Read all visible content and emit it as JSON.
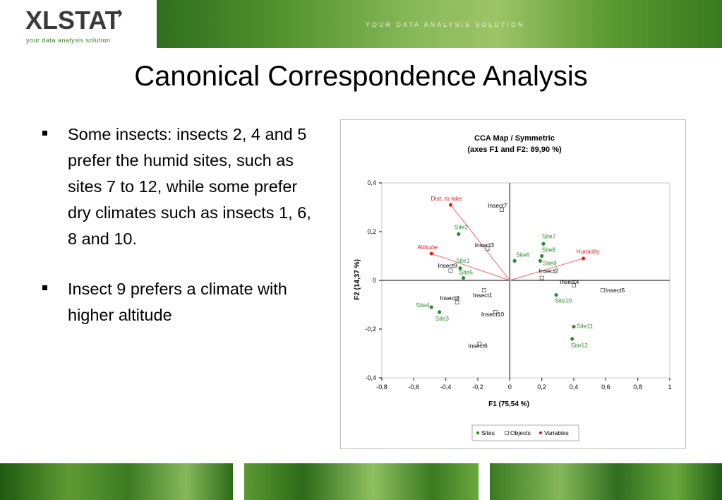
{
  "header": {
    "logo_text": "XLSTAT",
    "logo_tagline": "your data analysis solution",
    "banner_slogan": "YOUR DATA ANALYSIS SOLUTION"
  },
  "slide": {
    "title": "Canonical Correspondence Analysis",
    "bullets": [
      "Some insects: insects 2, 4 and 5 prefer the humid sites, such as sites 7 to 12, while some prefer dry climates such as insects 1, 6, 8 and 10.",
      "Insect 9 prefers a climate with higher altitude"
    ]
  },
  "chart_data": {
    "type": "scatter",
    "title": "CCA Map / Symmetric",
    "subtitle": "(axes F1 and F2: 89,90 %)",
    "xlabel": "F1 (75,54 %)",
    "ylabel": "F2 (14,37 %)",
    "xlim": [
      -0.8,
      1
    ],
    "ylim": [
      -0.4,
      0.4
    ],
    "xticks": [
      "-0,8",
      "-0,6",
      "-0,4",
      "-0,2",
      "0",
      "0,2",
      "0,4",
      "0,6",
      "0,8",
      "1"
    ],
    "yticks": [
      "-0,4",
      "-0,2",
      "0",
      "0,2",
      "0,4"
    ],
    "legend_position": "bottom",
    "legend": [
      "Sites",
      "Objects",
      "Variables"
    ],
    "colors": {
      "sites": "#2e8b2e",
      "objects": "#555555",
      "variables": "#e02020",
      "arrows": "#f08080"
    },
    "series": [
      {
        "name": "Sites",
        "points": [
          {
            "label": "Site1",
            "x": -0.31,
            "y": 0.05
          },
          {
            "label": "Site2",
            "x": -0.32,
            "y": 0.19
          },
          {
            "label": "Site3",
            "x": -0.44,
            "y": -0.13
          },
          {
            "label": "Site4",
            "x": -0.49,
            "y": -0.11
          },
          {
            "label": "Site5",
            "x": -0.29,
            "y": 0.01
          },
          {
            "label": "Site6",
            "x": 0.03,
            "y": 0.08
          },
          {
            "label": "Site7",
            "x": 0.21,
            "y": 0.15
          },
          {
            "label": "Site8",
            "x": 0.2,
            "y": 0.1
          },
          {
            "label": "Site9",
            "x": 0.19,
            "y": 0.08
          },
          {
            "label": "Site10",
            "x": 0.29,
            "y": -0.06
          },
          {
            "label": "Site11",
            "x": 0.4,
            "y": -0.19
          },
          {
            "label": "Site12",
            "x": 0.39,
            "y": -0.24
          }
        ]
      },
      {
        "name": "Objects",
        "points": [
          {
            "label": "Insect1",
            "x": -0.16,
            "y": -0.04
          },
          {
            "label": "Insect2",
            "x": 0.2,
            "y": 0.01
          },
          {
            "label": "Insect3",
            "x": -0.14,
            "y": 0.13
          },
          {
            "label": "Insect4",
            "x": 0.4,
            "y": -0.02
          },
          {
            "label": "Insect5",
            "x": 0.58,
            "y": -0.04
          },
          {
            "label": "Insect6",
            "x": -0.19,
            "y": -0.26
          },
          {
            "label": "Insect7",
            "x": -0.05,
            "y": 0.29
          },
          {
            "label": "Insect8",
            "x": -0.33,
            "y": -0.09
          },
          {
            "label": "Insect9",
            "x": -0.37,
            "y": 0.04
          },
          {
            "label": "Insect10",
            "x": -0.09,
            "y": -0.13
          }
        ]
      },
      {
        "name": "Variables",
        "points": [
          {
            "label": "Dist. to lake",
            "x": -0.37,
            "y": 0.31
          },
          {
            "label": "Altitude",
            "x": -0.49,
            "y": 0.11
          },
          {
            "label": "Humidity",
            "x": 0.46,
            "y": 0.09
          }
        ]
      }
    ]
  }
}
